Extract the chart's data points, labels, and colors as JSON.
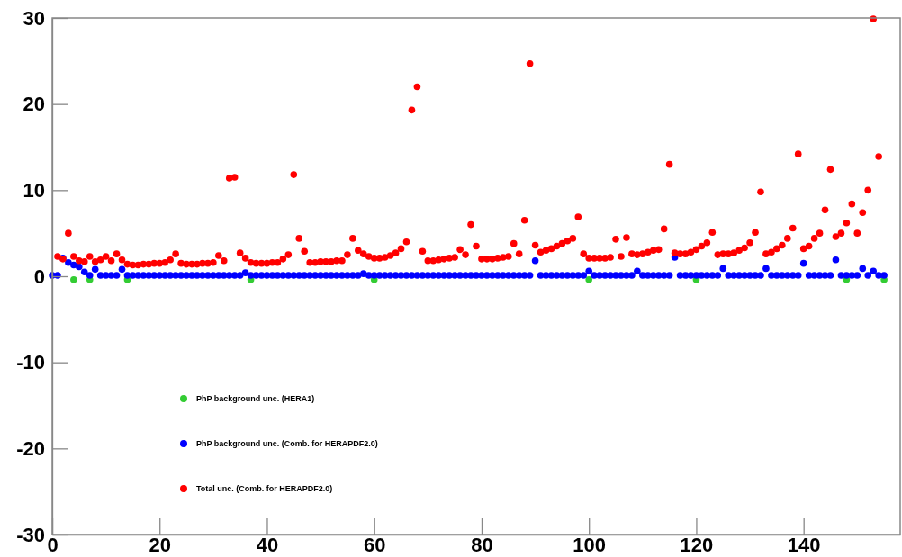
{
  "chart_data": {
    "type": "scatter",
    "marker": "circle",
    "legend": "bottom left",
    "grid": false,
    "xlim": [
      0,
      158
    ],
    "xticks": [
      0,
      20,
      40,
      60,
      80,
      100,
      120,
      140
    ],
    "ylim": [
      -30,
      30
    ],
    "yticks": [
      -30,
      -20,
      -10,
      0,
      10,
      20,
      30
    ],
    "series": [
      {
        "name": "PhP background unc. (HERA1)",
        "color": "#33cc33",
        "x": [
          4,
          7,
          14,
          37,
          60,
          100,
          120,
          148,
          155
        ],
        "values": [
          -0.4,
          -0.4,
          -0.4,
          -0.4,
          -0.4,
          -0.4,
          -0.4,
          -0.4,
          -0.4
        ]
      },
      {
        "name": "PhP background unc. (Comb. for HERAPDF2.0)",
        "color": "#0000ff",
        "x": [
          0,
          1,
          2,
          3,
          4,
          5,
          6,
          7,
          8,
          9,
          10,
          11,
          12,
          13,
          14,
          15,
          16,
          17,
          18,
          19,
          20,
          21,
          22,
          23,
          24,
          25,
          26,
          27,
          28,
          29,
          30,
          31,
          32,
          33,
          34,
          35,
          36,
          37,
          38,
          39,
          40,
          41,
          42,
          43,
          44,
          45,
          46,
          47,
          48,
          49,
          50,
          51,
          52,
          53,
          54,
          55,
          56,
          57,
          58,
          59,
          60,
          61,
          62,
          63,
          64,
          65,
          66,
          67,
          68,
          69,
          70,
          71,
          72,
          73,
          74,
          75,
          76,
          77,
          78,
          79,
          80,
          81,
          82,
          83,
          84,
          85,
          86,
          87,
          88,
          89,
          90,
          91,
          92,
          93,
          94,
          95,
          96,
          97,
          98,
          99,
          100,
          101,
          102,
          103,
          104,
          105,
          106,
          107,
          108,
          109,
          110,
          111,
          112,
          113,
          114,
          115,
          116,
          117,
          118,
          119,
          120,
          121,
          122,
          123,
          124,
          125,
          126,
          127,
          128,
          129,
          130,
          131,
          132,
          133,
          134,
          135,
          136,
          137,
          138,
          139,
          140,
          141,
          142,
          143,
          144,
          145,
          146,
          147,
          148,
          149,
          150,
          151,
          152,
          153,
          154,
          155
        ],
        "values": [
          0.1,
          0.1,
          2.1,
          1.6,
          1.3,
          1.1,
          0.5,
          0.1,
          0.8,
          0.1,
          0.1,
          0.1,
          0.1,
          0.8,
          0.1,
          0.1,
          0.1,
          0.1,
          0.1,
          0.1,
          0.1,
          0.1,
          0.1,
          0.1,
          0.1,
          0.1,
          0.1,
          0.1,
          0.1,
          0.1,
          0.1,
          0.1,
          0.1,
          0.1,
          0.1,
          0.1,
          0.4,
          0.1,
          0.1,
          0.1,
          0.1,
          0.1,
          0.1,
          0.1,
          0.1,
          0.1,
          0.1,
          0.1,
          0.1,
          0.1,
          0.1,
          0.1,
          0.1,
          0.1,
          0.1,
          0.1,
          0.1,
          0.1,
          0.3,
          0.1,
          0.1,
          0.1,
          0.1,
          0.1,
          0.1,
          0.1,
          0.1,
          0.1,
          0.1,
          0.1,
          0.1,
          0.1,
          0.1,
          0.1,
          0.1,
          0.1,
          0.1,
          0.1,
          0.1,
          0.1,
          0.1,
          0.1,
          0.1,
          0.1,
          0.1,
          0.1,
          0.1,
          0.1,
          0.1,
          0.1,
          1.8,
          0.1,
          0.1,
          0.1,
          0.1,
          0.1,
          0.1,
          0.1,
          0.1,
          0.1,
          0.6,
          0.1,
          0.1,
          0.1,
          0.1,
          0.1,
          0.1,
          0.1,
          0.1,
          0.6,
          0.1,
          0.1,
          0.1,
          0.1,
          0.1,
          0.1,
          2.2,
          0.1,
          0.1,
          0.1,
          0.1,
          0.1,
          0.1,
          0.1,
          0.1,
          0.9,
          0.1,
          0.1,
          0.1,
          0.1,
          0.1,
          0.1,
          0.1,
          0.9,
          0.1,
          0.1,
          0.1,
          0.1,
          0.1,
          0.1,
          1.5,
          0.1,
          0.1,
          0.1,
          0.1,
          0.1,
          1.9,
          0.1,
          0.1,
          0.1,
          0.1,
          0.9,
          0.1,
          0.6,
          0.1,
          0.1
        ]
      },
      {
        "name": "Total unc. (Comb. for HERAPDF2.0)",
        "color": "#ff0000",
        "x": [
          1,
          2,
          3,
          4,
          5,
          6,
          7,
          8,
          9,
          10,
          11,
          12,
          13,
          14,
          15,
          16,
          17,
          18,
          19,
          20,
          21,
          22,
          23,
          24,
          25,
          26,
          27,
          28,
          29,
          30,
          31,
          32,
          33,
          34,
          35,
          36,
          37,
          38,
          39,
          40,
          41,
          42,
          43,
          44,
          45,
          46,
          47,
          48,
          49,
          50,
          51,
          52,
          53,
          54,
          55,
          56,
          57,
          58,
          59,
          60,
          61,
          62,
          63,
          64,
          65,
          66,
          67,
          68,
          69,
          70,
          71,
          72,
          73,
          74,
          75,
          76,
          77,
          78,
          79,
          80,
          81,
          82,
          83,
          84,
          85,
          86,
          87,
          88,
          89,
          90,
          91,
          92,
          93,
          94,
          95,
          96,
          97,
          98,
          99,
          100,
          101,
          102,
          103,
          104,
          105,
          106,
          107,
          108,
          109,
          110,
          111,
          112,
          113,
          114,
          115,
          116,
          117,
          118,
          119,
          120,
          121,
          122,
          123,
          124,
          125,
          126,
          127,
          128,
          129,
          130,
          131,
          132,
          133,
          134,
          135,
          136,
          137,
          138,
          139,
          140,
          141,
          142,
          143,
          144,
          145,
          146,
          147,
          148,
          149,
          150,
          151,
          152,
          153,
          154
        ],
        "values": [
          2.3,
          2.0,
          5.0,
          2.3,
          1.8,
          1.7,
          2.3,
          1.7,
          1.9,
          2.3,
          1.8,
          2.6,
          1.9,
          1.4,
          1.3,
          1.3,
          1.4,
          1.4,
          1.5,
          1.5,
          1.6,
          1.9,
          2.6,
          1.5,
          1.4,
          1.4,
          1.4,
          1.5,
          1.5,
          1.6,
          2.4,
          1.8,
          11.4,
          11.5,
          2.7,
          2.1,
          1.6,
          1.5,
          1.5,
          1.5,
          1.6,
          1.6,
          2.0,
          2.5,
          11.8,
          4.4,
          2.9,
          1.6,
          1.6,
          1.7,
          1.7,
          1.7,
          1.8,
          1.8,
          2.5,
          4.4,
          3.0,
          2.6,
          2.3,
          2.1,
          2.1,
          2.2,
          2.4,
          2.7,
          3.2,
          4.0,
          19.3,
          22.0,
          2.9,
          1.8,
          1.8,
          1.9,
          2.0,
          2.1,
          2.2,
          3.1,
          2.5,
          6.0,
          3.5,
          2.0,
          2.0,
          2.0,
          2.1,
          2.2,
          2.3,
          3.8,
          2.6,
          6.5,
          24.7,
          3.6,
          2.8,
          3.0,
          3.2,
          3.5,
          3.8,
          4.1,
          4.4,
          6.9,
          2.6,
          2.1,
          2.1,
          2.1,
          2.1,
          2.2,
          4.3,
          2.3,
          4.5,
          2.6,
          2.5,
          2.6,
          2.8,
          3.0,
          3.1,
          5.5,
          13.0,
          2.7,
          2.6,
          2.6,
          2.8,
          3.1,
          3.5,
          3.9,
          5.1,
          2.5,
          2.6,
          2.6,
          2.7,
          3.0,
          3.3,
          3.9,
          5.1,
          9.8,
          2.6,
          2.8,
          3.2,
          3.6,
          4.4,
          5.6,
          14.2,
          3.2,
          3.5,
          4.4,
          5.0,
          7.7,
          12.4,
          4.6,
          5.0,
          6.2,
          8.4,
          5.0,
          7.4,
          10.0,
          29.9,
          13.9
        ]
      }
    ]
  }
}
